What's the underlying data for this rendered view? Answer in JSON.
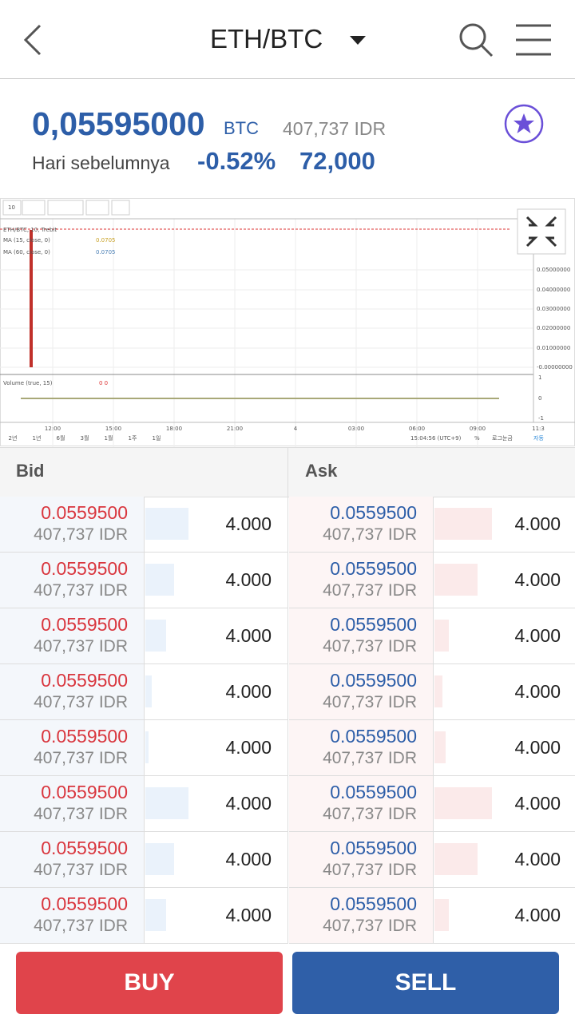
{
  "header": {
    "title": "ETH/BTC"
  },
  "price": {
    "value": "0,05595000",
    "unit": "BTC",
    "idr": "407,737 IDR",
    "label": "Hari sebelumnya",
    "change_pct": "-0.52%",
    "change_idr": "72,000"
  },
  "chart_widget": {
    "interval": "10",
    "legend": [
      "ETH/BTC, 10, Trebit",
      "MA (15, close, 0)",
      "0.0705",
      "MA (60, close, 0)",
      "0.0705"
    ],
    "y_labels": [
      "0.05000000",
      "0.04000000",
      "0.03000000",
      "0.02000000",
      "0.01000000",
      "-0.00000000"
    ],
    "volume_label": "Volume (true, 15)",
    "volume_value": "0 0",
    "volume_axis": [
      "1",
      "0",
      "-1"
    ],
    "x_labels": [
      "12:00",
      "15:00",
      "18:00",
      "21:00",
      "4",
      "03:00",
      "06:00",
      "09:00",
      "11:3"
    ],
    "ranges": [
      "2년",
      "1년",
      "6월",
      "3월",
      "1월",
      "1주",
      "1일"
    ],
    "time": "15:04:56 (UTC+9)",
    "percent": "%",
    "log": "로그눈금",
    "auto": "자동"
  },
  "orderbook": {
    "bid_header": "Bid",
    "ask_header": "Ask",
    "bids": [
      {
        "price": "0.0559500",
        "idr": "407,737 IDR",
        "amount": "4.000"
      },
      {
        "price": "0.0559500",
        "idr": "407,737 IDR",
        "amount": "4.000"
      },
      {
        "price": "0.0559500",
        "idr": "407,737 IDR",
        "amount": "4.000"
      },
      {
        "price": "0.0559500",
        "idr": "407,737 IDR",
        "amount": "4.000"
      },
      {
        "price": "0.0559500",
        "idr": "407,737 IDR",
        "amount": "4.000"
      },
      {
        "price": "0.0559500",
        "idr": "407,737 IDR",
        "amount": "4.000"
      },
      {
        "price": "0.0559500",
        "idr": "407,737 IDR",
        "amount": "4.000"
      },
      {
        "price": "0.0559500",
        "idr": "407,737 IDR",
        "amount": "4.000"
      }
    ],
    "asks": [
      {
        "price": "0.0559500",
        "idr": "407,737 IDR",
        "amount": "4.000"
      },
      {
        "price": "0.0559500",
        "idr": "407,737 IDR",
        "amount": "4.000"
      },
      {
        "price": "0.0559500",
        "idr": "407,737 IDR",
        "amount": "4.000"
      },
      {
        "price": "0.0559500",
        "idr": "407,737 IDR",
        "amount": "4.000"
      },
      {
        "price": "0.0559500",
        "idr": "407,737 IDR",
        "amount": "4.000"
      },
      {
        "price": "0.0559500",
        "idr": "407,737 IDR",
        "amount": "4.000"
      },
      {
        "price": "0.0559500",
        "idr": "407,737 IDR",
        "amount": "4.000"
      },
      {
        "price": "0.0559500",
        "idr": "407,737 IDR",
        "amount": "4.000"
      }
    ]
  },
  "buttons": {
    "buy": "BUY",
    "sell": "SELL"
  }
}
